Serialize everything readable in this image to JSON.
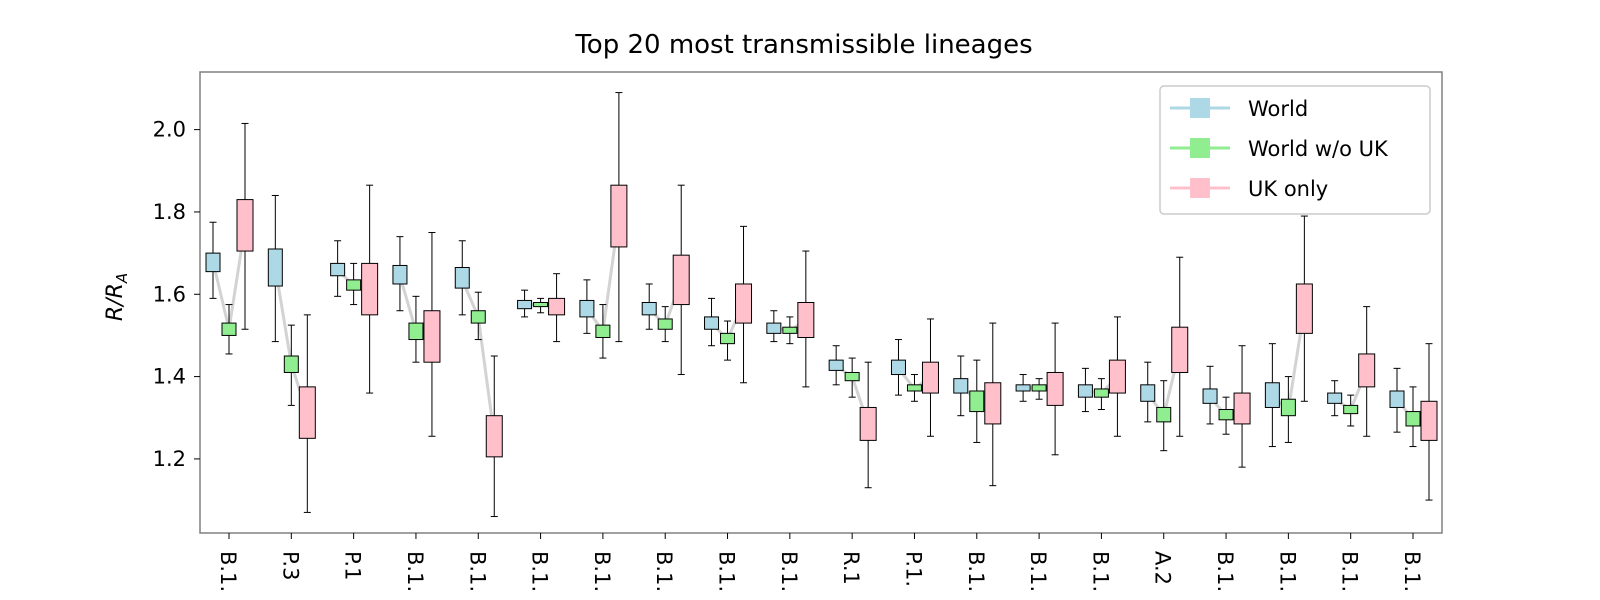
{
  "chart_data": {
    "type": "box",
    "title": "Top 20 most transmissible lineages",
    "ylabel": "R/R_A",
    "ylabel_parts": {
      "main": "R/R",
      "sub": "A"
    },
    "ylim": [
      1.02,
      2.14
    ],
    "yticks": [
      "1.2",
      "1.4",
      "1.6",
      "1.8",
      "2.0"
    ],
    "legend_position": "top-right",
    "categories": [
      "B.1.",
      "P.3",
      "P.1",
      "B.1.",
      "B.1.",
      "B.1.",
      "B.1.",
      "B.1.",
      "B.1.",
      "B.1.",
      "R.1",
      "P.1.",
      "B.1.",
      "B.1.",
      "B.1.",
      "A.2",
      "B.1.",
      "B.1.",
      "B.1.",
      "B.1."
    ],
    "series": [
      {
        "name": "World",
        "color": "#add8e6",
        "stats": [
          {
            "q1": 1.655,
            "med": 1.68,
            "q3": 1.7,
            "lo": 1.59,
            "hi": 1.775
          },
          {
            "q1": 1.62,
            "med": 1.665,
            "q3": 1.71,
            "lo": 1.485,
            "hi": 1.84
          },
          {
            "q1": 1.645,
            "med": 1.66,
            "q3": 1.675,
            "lo": 1.595,
            "hi": 1.73
          },
          {
            "q1": 1.625,
            "med": 1.645,
            "q3": 1.67,
            "lo": 1.56,
            "hi": 1.74
          },
          {
            "q1": 1.615,
            "med": 1.635,
            "q3": 1.665,
            "lo": 1.55,
            "hi": 1.73
          },
          {
            "q1": 1.565,
            "med": 1.575,
            "q3": 1.585,
            "lo": 1.545,
            "hi": 1.61
          },
          {
            "q1": 1.545,
            "med": 1.565,
            "q3": 1.585,
            "lo": 1.505,
            "hi": 1.635
          },
          {
            "q1": 1.55,
            "med": 1.565,
            "q3": 1.58,
            "lo": 1.515,
            "hi": 1.625
          },
          {
            "q1": 1.515,
            "med": 1.53,
            "q3": 1.545,
            "lo": 1.475,
            "hi": 1.59
          },
          {
            "q1": 1.505,
            "med": 1.52,
            "q3": 1.53,
            "lo": 1.485,
            "hi": 1.56
          },
          {
            "q1": 1.415,
            "med": 1.425,
            "q3": 1.44,
            "lo": 1.38,
            "hi": 1.475
          },
          {
            "q1": 1.405,
            "med": 1.42,
            "q3": 1.44,
            "lo": 1.355,
            "hi": 1.49
          },
          {
            "q1": 1.36,
            "med": 1.38,
            "q3": 1.395,
            "lo": 1.305,
            "hi": 1.45
          },
          {
            "q1": 1.365,
            "med": 1.375,
            "q3": 1.38,
            "lo": 1.34,
            "hi": 1.405
          },
          {
            "q1": 1.35,
            "med": 1.365,
            "q3": 1.38,
            "lo": 1.315,
            "hi": 1.42
          },
          {
            "q1": 1.34,
            "med": 1.36,
            "q3": 1.38,
            "lo": 1.29,
            "hi": 1.435
          },
          {
            "q1": 1.335,
            "med": 1.35,
            "q3": 1.37,
            "lo": 1.285,
            "hi": 1.425
          },
          {
            "q1": 1.325,
            "med": 1.35,
            "q3": 1.385,
            "lo": 1.23,
            "hi": 1.48
          },
          {
            "q1": 1.335,
            "med": 1.345,
            "q3": 1.36,
            "lo": 1.305,
            "hi": 1.39
          },
          {
            "q1": 1.325,
            "med": 1.345,
            "q3": 1.365,
            "lo": 1.265,
            "hi": 1.42
          }
        ]
      },
      {
        "name": "World w/o UK",
        "color": "#90ee90",
        "stats": [
          {
            "q1": 1.5,
            "med": 1.515,
            "q3": 1.53,
            "lo": 1.455,
            "hi": 1.575
          },
          {
            "q1": 1.41,
            "med": 1.43,
            "q3": 1.45,
            "lo": 1.33,
            "hi": 1.525
          },
          {
            "q1": 1.61,
            "med": 1.62,
            "q3": 1.635,
            "lo": 1.575,
            "hi": 1.675
          },
          {
            "q1": 1.49,
            "med": 1.51,
            "q3": 1.53,
            "lo": 1.435,
            "hi": 1.595
          },
          {
            "q1": 1.53,
            "med": 1.545,
            "q3": 1.56,
            "lo": 1.49,
            "hi": 1.605
          },
          {
            "q1": 1.57,
            "med": 1.575,
            "q3": 1.58,
            "lo": 1.555,
            "hi": 1.59
          },
          {
            "q1": 1.495,
            "med": 1.51,
            "q3": 1.525,
            "lo": 1.445,
            "hi": 1.575
          },
          {
            "q1": 1.515,
            "med": 1.525,
            "q3": 1.54,
            "lo": 1.485,
            "hi": 1.57
          },
          {
            "q1": 1.48,
            "med": 1.49,
            "q3": 1.505,
            "lo": 1.44,
            "hi": 1.535
          },
          {
            "q1": 1.505,
            "med": 1.51,
            "q3": 1.52,
            "lo": 1.48,
            "hi": 1.545
          },
          {
            "q1": 1.39,
            "med": 1.4,
            "q3": 1.41,
            "lo": 1.35,
            "hi": 1.445
          },
          {
            "q1": 1.365,
            "med": 1.37,
            "q3": 1.38,
            "lo": 1.34,
            "hi": 1.405
          },
          {
            "q1": 1.315,
            "med": 1.34,
            "q3": 1.365,
            "lo": 1.24,
            "hi": 1.44
          },
          {
            "q1": 1.365,
            "med": 1.37,
            "q3": 1.38,
            "lo": 1.345,
            "hi": 1.395
          },
          {
            "q1": 1.35,
            "med": 1.36,
            "q3": 1.37,
            "lo": 1.32,
            "hi": 1.395
          },
          {
            "q1": 1.29,
            "med": 1.305,
            "q3": 1.325,
            "lo": 1.22,
            "hi": 1.39
          },
          {
            "q1": 1.295,
            "med": 1.305,
            "q3": 1.32,
            "lo": 1.26,
            "hi": 1.35
          },
          {
            "q1": 1.305,
            "med": 1.32,
            "q3": 1.345,
            "lo": 1.24,
            "hi": 1.4
          },
          {
            "q1": 1.31,
            "med": 1.32,
            "q3": 1.33,
            "lo": 1.28,
            "hi": 1.355
          },
          {
            "q1": 1.28,
            "med": 1.295,
            "q3": 1.315,
            "lo": 1.23,
            "hi": 1.375
          }
        ]
      },
      {
        "name": "UK only",
        "color": "#ffc0cb",
        "stats": [
          {
            "q1": 1.705,
            "med": 1.765,
            "q3": 1.83,
            "lo": 1.515,
            "hi": 2.015
          },
          {
            "q1": 1.25,
            "med": 1.31,
            "q3": 1.375,
            "lo": 1.07,
            "hi": 1.55
          },
          {
            "q1": 1.55,
            "med": 1.61,
            "q3": 1.675,
            "lo": 1.36,
            "hi": 1.865
          },
          {
            "q1": 1.435,
            "med": 1.5,
            "q3": 1.56,
            "lo": 1.255,
            "hi": 1.75
          },
          {
            "q1": 1.205,
            "med": 1.255,
            "q3": 1.305,
            "lo": 1.06,
            "hi": 1.45
          },
          {
            "q1": 1.55,
            "med": 1.57,
            "q3": 1.59,
            "lo": 1.485,
            "hi": 1.65
          },
          {
            "q1": 1.715,
            "med": 1.79,
            "q3": 1.865,
            "lo": 1.485,
            "hi": 2.09
          },
          {
            "q1": 1.575,
            "med": 1.635,
            "q3": 1.695,
            "lo": 1.405,
            "hi": 1.865
          },
          {
            "q1": 1.53,
            "med": 1.58,
            "q3": 1.625,
            "lo": 1.385,
            "hi": 1.765
          },
          {
            "q1": 1.495,
            "med": 1.54,
            "q3": 1.58,
            "lo": 1.375,
            "hi": 1.705
          },
          {
            "q1": 1.245,
            "med": 1.285,
            "q3": 1.325,
            "lo": 1.13,
            "hi": 1.435
          },
          {
            "q1": 1.36,
            "med": 1.4,
            "q3": 1.435,
            "lo": 1.255,
            "hi": 1.54
          },
          {
            "q1": 1.285,
            "med": 1.335,
            "q3": 1.385,
            "lo": 1.135,
            "hi": 1.53
          },
          {
            "q1": 1.33,
            "med": 1.37,
            "q3": 1.41,
            "lo": 1.21,
            "hi": 1.53
          },
          {
            "q1": 1.36,
            "med": 1.4,
            "q3": 1.44,
            "lo": 1.255,
            "hi": 1.545
          },
          {
            "q1": 1.41,
            "med": 1.465,
            "q3": 1.52,
            "lo": 1.255,
            "hi": 1.69
          },
          {
            "q1": 1.285,
            "med": 1.32,
            "q3": 1.36,
            "lo": 1.18,
            "hi": 1.475
          },
          {
            "q1": 1.505,
            "med": 1.565,
            "q3": 1.625,
            "lo": 1.34,
            "hi": 1.79
          },
          {
            "q1": 1.375,
            "med": 1.415,
            "q3": 1.455,
            "lo": 1.255,
            "hi": 1.57
          },
          {
            "q1": 1.245,
            "med": 1.29,
            "q3": 1.34,
            "lo": 1.1,
            "hi": 1.48
          }
        ]
      }
    ],
    "connector_color": "#d3d3d3"
  }
}
